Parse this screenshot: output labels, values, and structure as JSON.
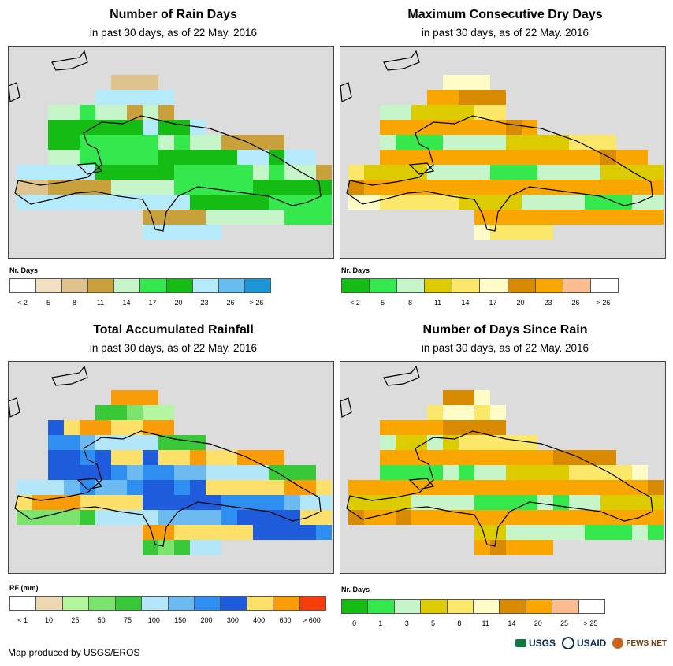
{
  "panels": [
    {
      "id": "rain-days",
      "title": "Number of Rain Days",
      "subtitle": "in past 30 days, as of 22 May. 2016",
      "legend_title": "Nr. Days",
      "legend_labels": [
        "< 2",
        "5",
        "8",
        "11",
        "14",
        "17",
        "20",
        "23",
        "26",
        "> 26"
      ],
      "legend_colors": [
        "#ffffff",
        "#f3dfc1",
        "#dfc38e",
        "#c9a13c",
        "#c5f5c8",
        "#34e84e",
        "#14bc14",
        "#b4eafa",
        "#68bdf0",
        "#1b95d6"
      ]
    },
    {
      "id": "dry-days",
      "title": "Maximum Consecutive Dry Days",
      "subtitle": "in past 30 days, as of 22 May. 2016",
      "legend_title": "Nr. Days",
      "legend_labels": [
        "< 2",
        "5",
        "8",
        "11",
        "14",
        "17",
        "20",
        "23",
        "26",
        "> 26"
      ],
      "legend_colors": [
        "#14bc14",
        "#34e84e",
        "#c5f5c8",
        "#dccb00",
        "#fbe86a",
        "#fffcc8",
        "#d88a00",
        "#f9a600",
        "#fbbd90",
        "#ffffff"
      ]
    },
    {
      "id": "rainfall",
      "title": "Total Accumulated Rainfall",
      "subtitle": "in past 30 days, as of 22 May. 2016",
      "legend_title": "RF (mm)",
      "legend_labels": [
        "< 1",
        "10",
        "25",
        "50",
        "75",
        "100",
        "150",
        "200",
        "300",
        "400",
        "600",
        "> 600"
      ],
      "legend_colors": [
        "#ffffff",
        "#eed8b4",
        "#b4f5a0",
        "#7ce46e",
        "#38c838",
        "#b4e6f9",
        "#6dbaf0",
        "#2f8ff0",
        "#1f5cdc",
        "#fde06a",
        "#f99c0a",
        "#f53c0a"
      ]
    },
    {
      "id": "days-since",
      "title": "Number of Days Since Rain",
      "subtitle": "in past 30 days, as of 22 May. 2016",
      "legend_title": "Nr. Days",
      "legend_labels": [
        "0",
        "1",
        "3",
        "5",
        "8",
        "11",
        "14",
        "20",
        "25",
        "> 25"
      ],
      "legend_colors": [
        "#14bc14",
        "#34e84e",
        "#c5f5c8",
        "#dccb00",
        "#fbe86a",
        "#fffcc8",
        "#d88a00",
        "#f9a600",
        "#fbbd90",
        "#ffffff"
      ]
    }
  ],
  "footer": {
    "credit": "Map produced by USGS/EROS",
    "logos": [
      "USGS",
      "USAID",
      "FEWS NET"
    ]
  }
}
